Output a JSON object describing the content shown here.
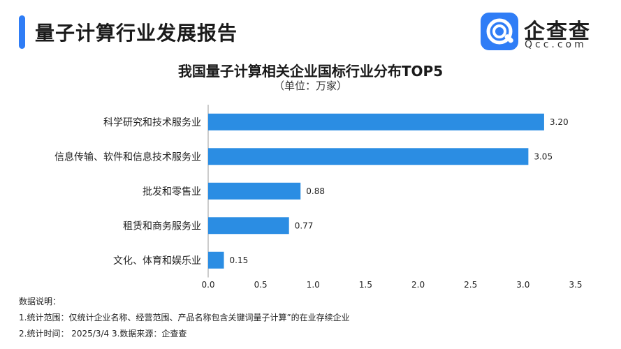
{
  "header": {
    "title": "量子计算行业发展报告",
    "logo_name": "企查查",
    "logo_sub": "Qcc.com",
    "accent_color": "#2f7df6"
  },
  "chart_data": {
    "type": "bar",
    "orientation": "horizontal",
    "title": "我国量子计算相关企业国标行业分布TOP5",
    "subtitle": "（单位：万家）",
    "categories": [
      "科学研究和技术服务业",
      "信息传输、软件和信息技术服务业",
      "批发和零售业",
      "租赁和商务服务业",
      "文化、体育和娱乐业"
    ],
    "values": [
      3.2,
      3.05,
      0.88,
      0.77,
      0.15
    ],
    "value_labels": [
      "3.20",
      "3.05",
      "0.88",
      "0.77",
      "0.15"
    ],
    "xlim": [
      0,
      3.5
    ],
    "ticks": [
      "0.0",
      "0.5",
      "1.0",
      "1.5",
      "2.0",
      "2.5",
      "3.0",
      "3.5"
    ],
    "tick_values": [
      0,
      0.5,
      1.0,
      1.5,
      2.0,
      2.5,
      3.0,
      3.5
    ],
    "bar_color": "#2b8de3",
    "grid": false,
    "legend": "none"
  },
  "notes": {
    "heading": "数据说明：",
    "line1": "1.统计范围：仅统计企业名称、经营范围、产品名称包含关键词量子计算”的在业存续企业",
    "line2": "2.统计时间：  2025/3/4         3.数据来源：企查查"
  }
}
